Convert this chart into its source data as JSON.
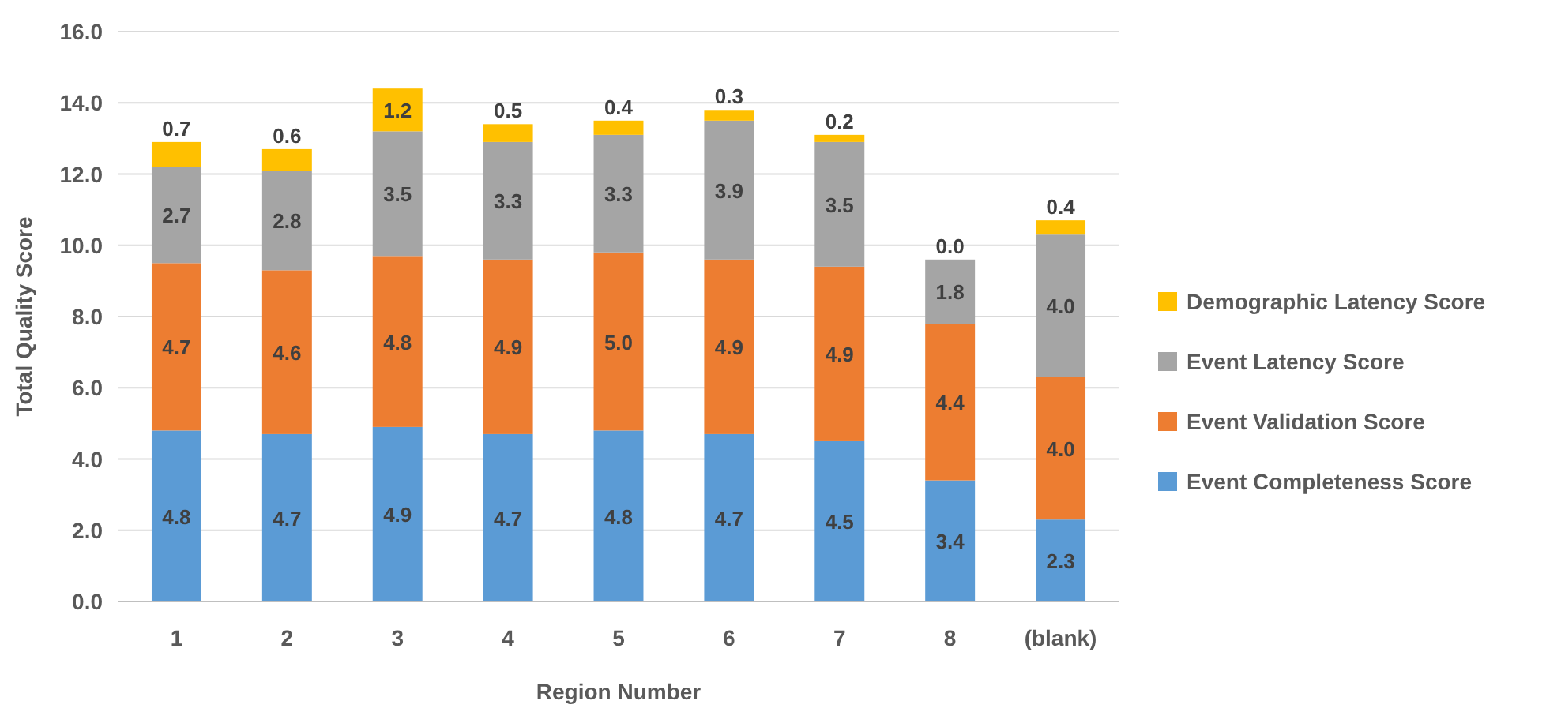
{
  "chart_data": {
    "type": "bar",
    "stacked": true,
    "xlabel": "Region Number",
    "ylabel": "Total Quality Score",
    "categories": [
      "1",
      "2",
      "3",
      "4",
      "5",
      "6",
      "7",
      "8",
      "(blank)"
    ],
    "series": [
      {
        "name": "Event Completeness Score",
        "color": "#5b9bd5",
        "values": [
          4.8,
          4.7,
          4.9,
          4.7,
          4.8,
          4.7,
          4.5,
          3.4,
          2.3
        ],
        "value_labels": [
          "4.8",
          "4.7",
          "4.9",
          "4.7",
          "4.8",
          "4.7",
          "4.5",
          "3.4",
          "2.3"
        ]
      },
      {
        "name": "Event Validation Score",
        "color": "#ed7d31",
        "values": [
          4.7,
          4.6,
          4.8,
          4.9,
          5.0,
          4.9,
          4.9,
          4.4,
          4.0
        ],
        "value_labels": [
          "4.7",
          "4.6",
          "4.8",
          "4.9",
          "5.0",
          "4.9",
          "4.9",
          "4.4",
          "4.0"
        ]
      },
      {
        "name": "Event Latency Score",
        "color": "#a5a5a5",
        "values": [
          2.7,
          2.8,
          3.5,
          3.3,
          3.3,
          3.9,
          3.5,
          1.8,
          4.0
        ],
        "value_labels": [
          "2.7",
          "2.8",
          "3.5",
          "3.3",
          "3.3",
          "3.9",
          "3.5",
          "1.8",
          "4.0"
        ]
      },
      {
        "name": "Demographic Latency Score",
        "color": "#ffc000",
        "values": [
          0.7,
          0.6,
          1.2,
          0.5,
          0.4,
          0.3,
          0.2,
          0.0,
          0.4
        ],
        "value_labels": [
          "0.7",
          "0.6",
          "1.2",
          "0.5",
          "0.4",
          "0.3",
          "0.2",
          "0.0",
          "0.4"
        ]
      }
    ],
    "ylim": [
      0,
      16
    ],
    "yticks": [
      {
        "value": 0,
        "label": "0.0"
      },
      {
        "value": 2,
        "label": "2.0"
      },
      {
        "value": 4,
        "label": "4.0"
      },
      {
        "value": 6,
        "label": "6.0"
      },
      {
        "value": 8,
        "label": "8.0"
      },
      {
        "value": 10,
        "label": "10.0"
      },
      {
        "value": 12,
        "label": "12.0"
      },
      {
        "value": 14,
        "label": "14.0"
      },
      {
        "value": 16,
        "label": "16.0"
      }
    ],
    "grid": "y",
    "legend": "right"
  }
}
